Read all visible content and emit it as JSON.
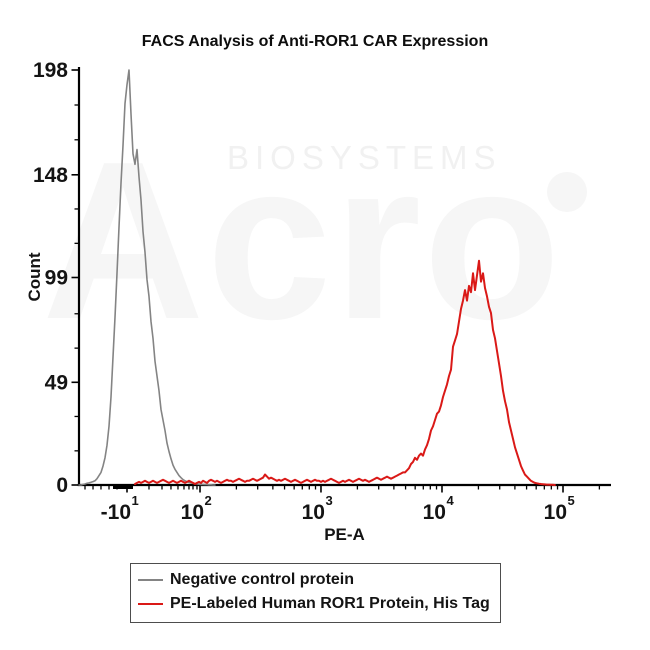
{
  "colors": {
    "background": "#ffffff",
    "axis": "#000000",
    "text": "#141414",
    "watermark_main": "#f6f6f6",
    "watermark_top": "#f1f1f1",
    "legend_border": "#4d4d4d"
  },
  "watermark": {
    "brand_top": "BIOSYSTEMS",
    "brand_main": "Acro"
  },
  "chart_data": {
    "type": "line",
    "subtype": "flow-cytometry-histogram-overlay",
    "title": "FACS Analysis of Anti-ROR1 CAR Expression",
    "xlabel": "PE-A",
    "ylabel": "Count",
    "x_scale": "biexponential (logicle flow-cytometry display)",
    "x_axis_note": "u = fractional position along the x-axis (0 = origin at y-axis, 1 = right end); labeled major-tick positions listed in x_ticks",
    "ylim": [
      0,
      198
    ],
    "y_ticks": [
      0,
      49,
      99,
      148,
      198
    ],
    "y_minor_ticks": [
      16.3,
      32.7,
      65.3,
      81.7,
      115.3,
      131.7,
      164.7,
      181.3
    ],
    "x_ticks": [
      {
        "base": "-10",
        "exp": "1",
        "u": 0.0904
      },
      {
        "base": "10",
        "exp": "2",
        "u": 0.2279
      },
      {
        "base": "10",
        "exp": "3",
        "u": 0.4557
      },
      {
        "base": "10",
        "exp": "4",
        "u": 0.6836
      },
      {
        "base": "10",
        "exp": "5",
        "u": 0.9115
      }
    ],
    "x_minor_ticks_u": [
      0.0113,
      0.0264,
      0.0414,
      0.0565,
      0.0716,
      0.1318,
      0.1563,
      0.1732,
      0.1864,
      0.1977,
      0.2071,
      0.2147,
      0.2222,
      0.2964,
      0.3365,
      0.3651,
      0.3871,
      0.4052,
      0.4205,
      0.4337,
      0.4454,
      0.5243,
      0.5644,
      0.593,
      0.615,
      0.6331,
      0.6484,
      0.6616,
      0.6733,
      0.7522,
      0.7923,
      0.8209,
      0.8429,
      0.861,
      0.8763,
      0.8895,
      0.9012,
      0.98
    ],
    "legend_position": "bottom",
    "series": [
      {
        "id": "curve-negative-control",
        "name": "Negative control protein",
        "color": "#848484",
        "peak": {
          "u": 0.094,
          "count": 198
        },
        "u_start": 0.0,
        "u_step": 0.003766,
        "counts": [
          0,
          0,
          0.3,
          0.5,
          0.8,
          1,
          1.3,
          1.6,
          2,
          3,
          4.5,
          6,
          9,
          13,
          19,
          28,
          42,
          61,
          80,
          101,
          123,
          144,
          162,
          182,
          191,
          198,
          177,
          158,
          153,
          160,
          147,
          136,
          121,
          111,
          98,
          90,
          78,
          70,
          59,
          52,
          45,
          36,
          31,
          26,
          20,
          16,
          12.5,
          9.5,
          7.5,
          6,
          4.5,
          3.5,
          2.6,
          2,
          1.6,
          1.2,
          1,
          0.8,
          0.6,
          0.5,
          0.4,
          0.3,
          0.3,
          0.2,
          0.2,
          0.1,
          0.1,
          0,
          0
        ]
      },
      {
        "id": "curve-pe-ror1",
        "name": "PE-Labeled Human ROR1 Protein, His Tag",
        "color": "#da1917",
        "peak": {
          "u": 0.753,
          "count": 107
        },
        "u_start": 0.10546,
        "u_step": 0.003766,
        "counts": [
          0.5,
          1,
          1.5,
          1,
          1.5,
          2,
          1.5,
          1,
          1.5,
          2,
          1.5,
          1,
          1.5,
          2,
          2.5,
          2,
          1.5,
          1,
          1.5,
          2,
          1.5,
          1,
          1.5,
          2,
          1.5,
          1,
          1.5,
          2,
          1.5,
          1,
          0.5,
          1,
          1.5,
          1,
          2,
          1.5,
          1,
          2,
          2.5,
          2,
          1.5,
          2,
          1.5,
          1,
          1.5,
          2,
          2.5,
          2,
          2,
          1.5,
          2,
          2.5,
          3,
          2.5,
          2,
          1.5,
          2,
          2,
          2.5,
          3,
          2.5,
          2,
          2.5,
          3,
          3.5,
          5,
          4,
          3,
          3.5,
          3,
          2.5,
          2,
          2.5,
          2,
          2.5,
          3,
          2.5,
          2,
          1.5,
          2,
          2.5,
          2,
          1.5,
          1,
          1.5,
          2,
          2.5,
          2,
          1.5,
          2,
          2.5,
          2,
          2,
          1.5,
          2,
          1.5,
          2,
          2.5,
          3,
          2.5,
          2,
          1.5,
          1,
          1.5,
          2,
          1.5,
          2,
          2.5,
          2,
          1.5,
          2,
          2.5,
          3,
          2.5,
          2,
          2.5,
          2,
          1.5,
          2,
          2.5,
          3,
          3.5,
          3,
          2.5,
          3,
          3.5,
          4,
          3.5,
          3,
          3.5,
          4,
          4.5,
          5,
          5.5,
          6,
          6,
          7,
          8,
          10,
          11,
          13,
          12,
          14,
          15,
          14,
          17,
          19,
          22,
          26,
          28,
          31,
          34,
          35,
          38,
          42,
          45,
          48,
          52,
          55,
          66,
          69,
          72,
          78,
          84,
          88,
          93,
          88,
          95,
          92,
          101,
          93,
          100,
          107,
          97,
          101,
          94,
          90,
          85,
          82,
          74,
          70,
          64,
          58,
          52,
          45,
          40,
          36,
          30,
          26,
          22,
          18,
          15,
          12,
          9,
          7,
          5,
          4,
          3,
          2,
          1.5,
          1,
          0.8,
          0.6,
          0.5,
          0.4,
          0.3,
          0.2,
          0.2,
          0.1,
          0.1,
          0
        ]
      }
    ]
  }
}
